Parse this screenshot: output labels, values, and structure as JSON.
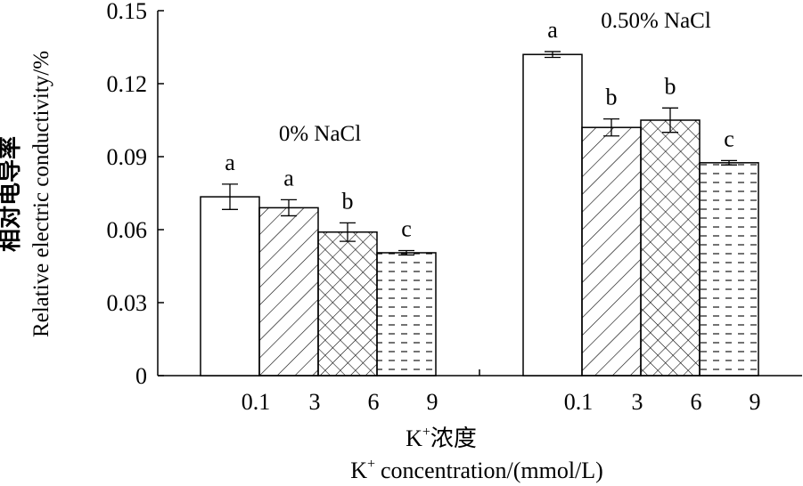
{
  "chart_data": {
    "type": "bar",
    "ylabel_cn": "相对电导率",
    "ylabel_en": "Relative electric conductivity/%",
    "xlabel_cn": "浓度",
    "xlabel_en": "concentration/(mmol/L)",
    "xlabel_ion": "K",
    "xlabel_ion_charge": "+",
    "ylim": [
      0,
      0.15
    ],
    "yticks": [
      "0",
      "0.03",
      "0.06",
      "0.09",
      "0.12",
      "0.15"
    ],
    "categories": [
      "0.1",
      "3",
      "6",
      "9"
    ],
    "fill_patterns": [
      "none",
      "diagonal-hatch",
      "cross-hatch",
      "dashed-horizontal"
    ],
    "groups": [
      {
        "name": "0% NaCl",
        "values": [
          0.0735,
          0.069,
          0.059,
          0.0505
        ],
        "errors": [
          0.0052,
          0.0033,
          0.0038,
          0.0009
        ],
        "letters": [
          "a",
          "a",
          "b",
          "c"
        ]
      },
      {
        "name": "0.50% NaCl",
        "values": [
          0.132,
          0.102,
          0.105,
          0.0875
        ],
        "errors": [
          0.0012,
          0.0035,
          0.005,
          0.0009
        ],
        "letters": [
          "a",
          "b",
          "b",
          "c"
        ]
      }
    ]
  }
}
